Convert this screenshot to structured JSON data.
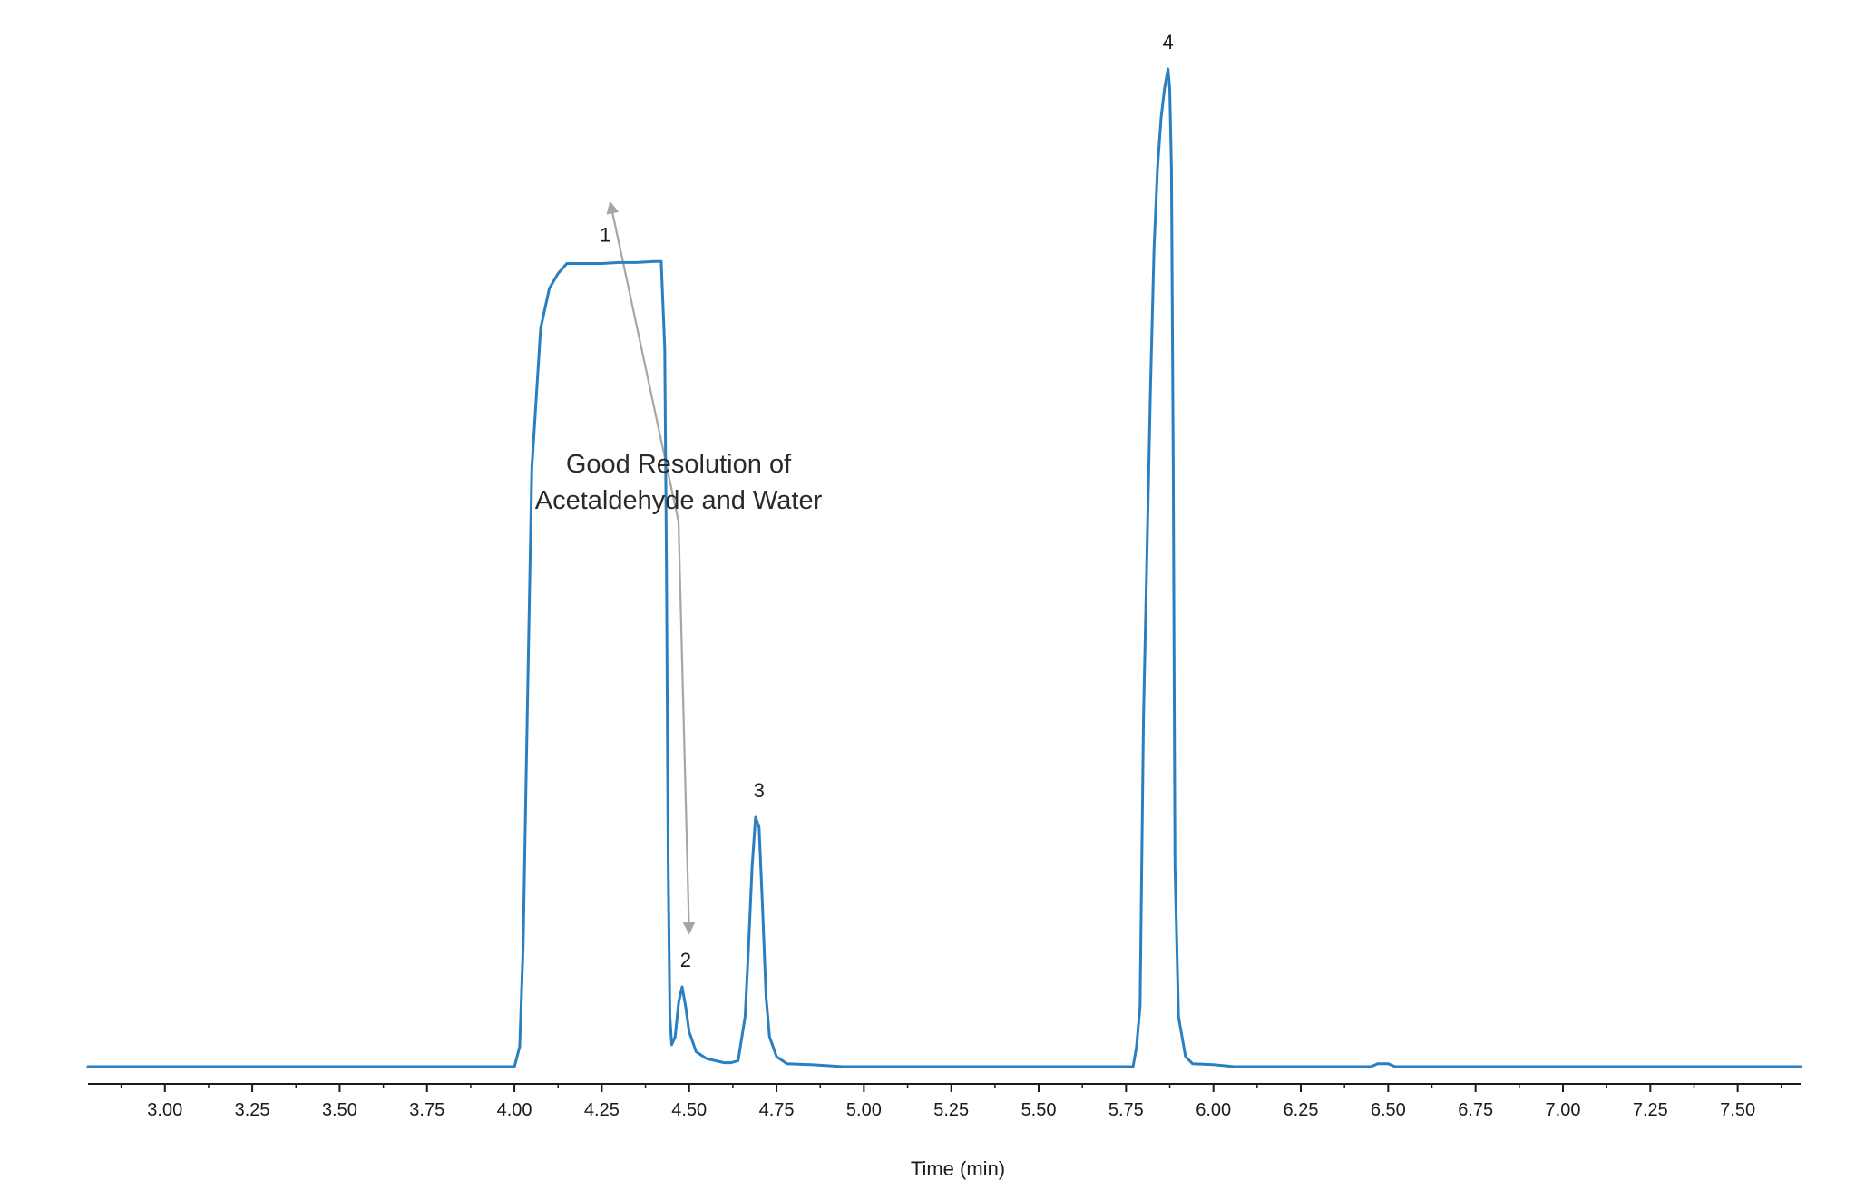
{
  "chart_data": {
    "type": "line",
    "title": "",
    "xlabel": "Time (min)",
    "ylabel": "",
    "xlim": [
      2.78,
      7.68
    ],
    "ylim": [
      0,
      100
    ],
    "grid": false,
    "x_ticks": [
      3.0,
      3.25,
      3.5,
      3.75,
      4.0,
      4.25,
      4.5,
      4.75,
      5.0,
      5.25,
      5.5,
      5.75,
      6.0,
      6.25,
      6.5,
      6.75,
      7.0,
      7.25,
      7.5
    ],
    "x_tick_labels": [
      "3.00",
      "3.25",
      "3.50",
      "3.75",
      "4.00",
      "4.25",
      "4.50",
      "4.75",
      "5.00",
      "5.25",
      "5.50",
      "5.75",
      "6.00",
      "6.25",
      "6.50",
      "6.75",
      "7.00",
      "7.25",
      "7.50"
    ],
    "line_color": "#2a7fc1",
    "series": [
      {
        "name": "",
        "x": [
          2.78,
          4.0,
          4.015,
          4.025,
          4.035,
          4.05,
          4.075,
          4.1,
          4.125,
          4.15,
          4.2,
          4.25,
          4.3,
          4.35,
          4.4,
          4.42,
          4.43,
          4.435,
          4.44,
          4.445,
          4.45,
          4.46,
          4.47,
          4.48,
          4.49,
          4.5,
          4.52,
          4.55,
          4.6,
          4.62,
          4.64,
          4.66,
          4.67,
          4.68,
          4.69,
          4.7,
          4.71,
          4.72,
          4.73,
          4.75,
          4.78,
          4.85,
          4.94,
          5.2,
          5.5,
          5.77,
          5.78,
          5.79,
          5.8,
          5.82,
          5.83,
          5.84,
          5.85,
          5.86,
          5.87,
          5.875,
          5.88,
          5.885,
          5.89,
          5.9,
          5.92,
          5.94,
          6.0,
          6.06,
          6.45,
          6.47,
          6.5,
          6.52,
          7.68
        ],
        "y": [
          0,
          0,
          2,
          12,
          32,
          60,
          74,
          78,
          79.5,
          80.5,
          80.5,
          80.5,
          80.6,
          80.6,
          80.7,
          80.7,
          72,
          50,
          20,
          5,
          2.2,
          3,
          6.5,
          8,
          6,
          3.5,
          1.5,
          0.8,
          0.4,
          0.4,
          0.6,
          5,
          12,
          20,
          25,
          24,
          16,
          7,
          3,
          1,
          0.3,
          0.2,
          0,
          0,
          0,
          0,
          2,
          6,
          35,
          68,
          82,
          90,
          95,
          98,
          100,
          98,
          90,
          60,
          20,
          5,
          1,
          0.3,
          0.2,
          0,
          0,
          0.3,
          0.3,
          0,
          0
        ]
      }
    ],
    "peak_labels": [
      {
        "label": "1",
        "x": 4.26,
        "y": 80.7
      },
      {
        "label": "2",
        "x": 4.49,
        "y": 8
      },
      {
        "label": "3",
        "x": 4.7,
        "y": 25
      },
      {
        "label": "4",
        "x": 5.87,
        "y": 100
      }
    ],
    "annotation": {
      "lines": [
        "Good Resolution of",
        "Acetaldehyde and Water"
      ],
      "arrow_color": "#a6a6a6",
      "arrow_targets": [
        {
          "x": 4.275,
          "y": 86.5
        },
        {
          "x": 4.5,
          "y": 13.5
        }
      ]
    }
  }
}
